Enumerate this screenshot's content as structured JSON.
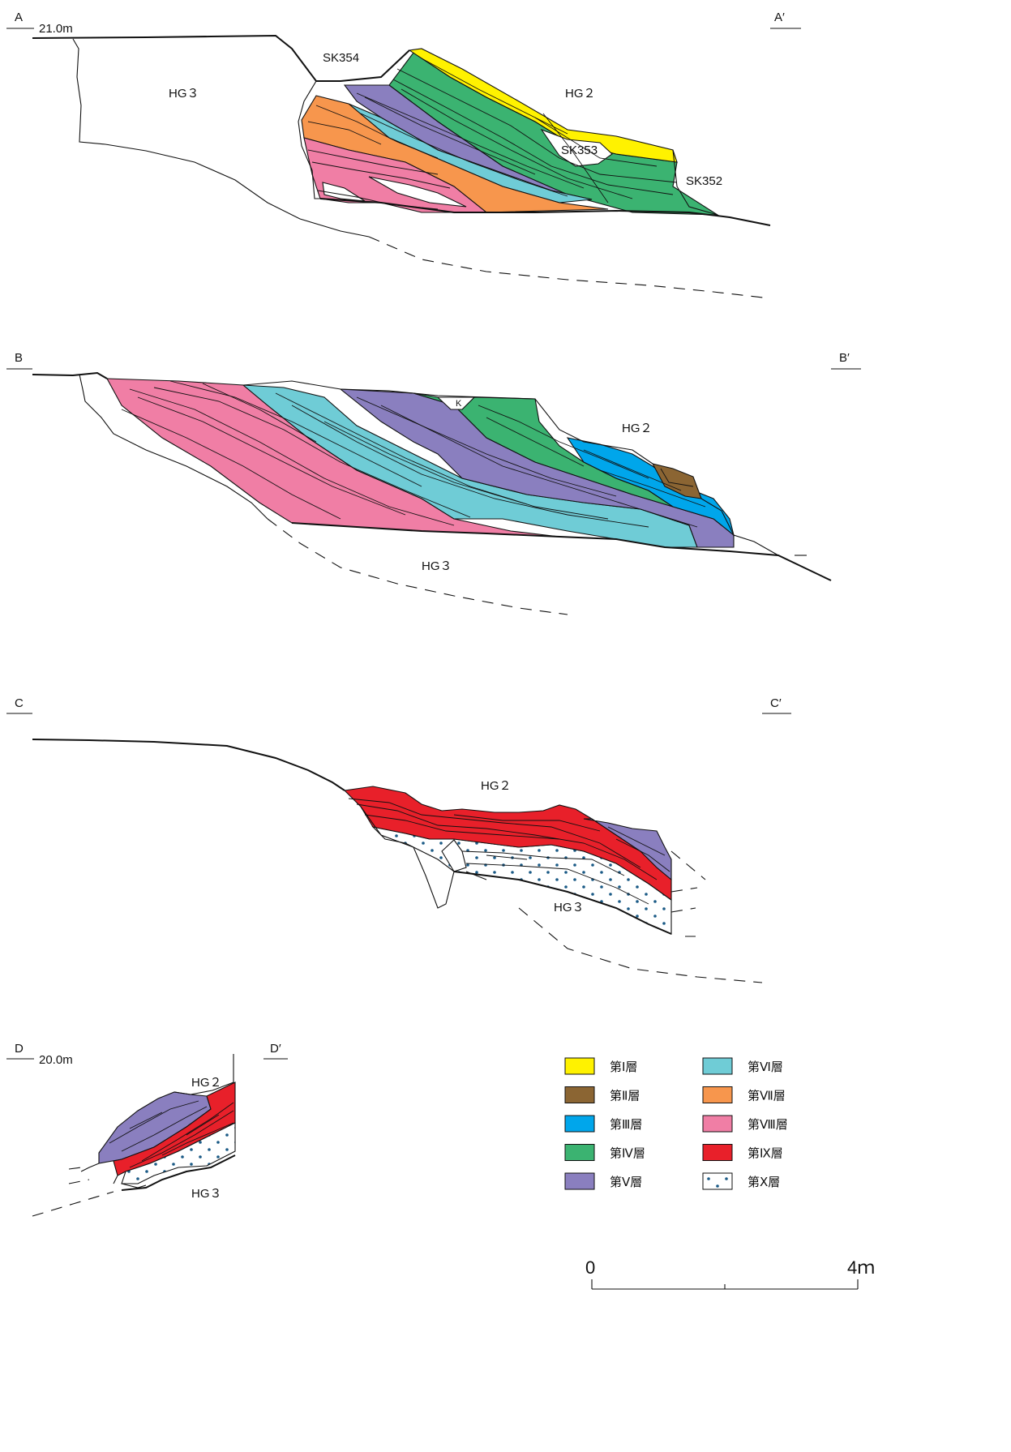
{
  "sections": [
    {
      "start": "A",
      "end": "A′",
      "elevation": "21.0m"
    },
    {
      "start": "B",
      "end": "B′",
      "elevation": ""
    },
    {
      "start": "C",
      "end": "C′",
      "elevation": ""
    },
    {
      "start": "D",
      "end": "D′",
      "elevation": "20.0m"
    }
  ],
  "labels": {
    "a_hg3": "HG３",
    "a_hg2": "HG２",
    "a_sk354": "SK354",
    "a_sk353": "SK353",
    "a_sk352": "SK352",
    "b_k": "K",
    "b_hg2": "HG２",
    "b_hg3": "HG３",
    "c_hg2": "HG２",
    "c_hg3": "HG３",
    "d_hg2": "HG２",
    "d_hg3": "HG３"
  },
  "legend": [
    {
      "label": "第Ⅰ層",
      "color": "#FFF200",
      "pattern": "solid"
    },
    {
      "label": "第Ⅱ層",
      "color": "#8B6533",
      "pattern": "solid"
    },
    {
      "label": "第Ⅲ層",
      "color": "#00A6EB",
      "pattern": "solid"
    },
    {
      "label": "第Ⅳ層",
      "color": "#3BB371",
      "pattern": "solid"
    },
    {
      "label": "第Ⅴ層",
      "color": "#8A7FBF",
      "pattern": "solid"
    },
    {
      "label": "第Ⅵ層",
      "color": "#6FCCD6",
      "pattern": "solid"
    },
    {
      "label": "第Ⅶ層",
      "color": "#F7964D",
      "pattern": "solid"
    },
    {
      "label": "第Ⅷ層",
      "color": "#F07EA5",
      "pattern": "solid"
    },
    {
      "label": "第Ⅸ層",
      "color": "#E8202A",
      "pattern": "solid"
    },
    {
      "label": "第Ⅹ層",
      "color": "#1A5A86",
      "pattern": "dots"
    }
  ],
  "scale": {
    "min_label": "0",
    "max_label": "4ｍ"
  }
}
